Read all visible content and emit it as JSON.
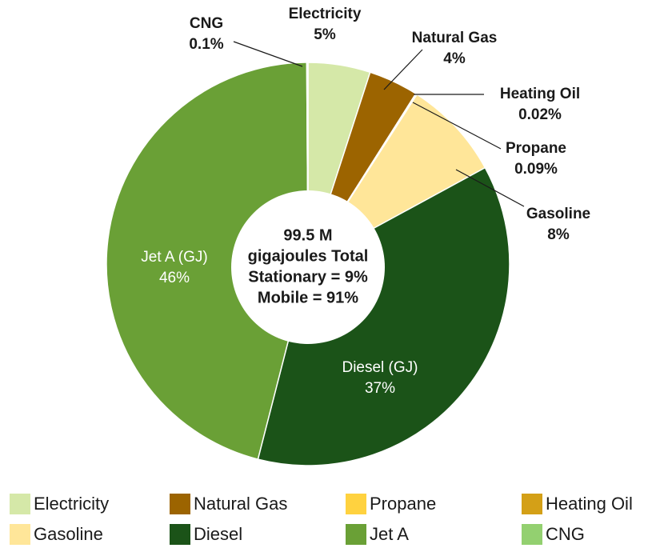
{
  "chart_data": {
    "type": "donut",
    "slices": [
      {
        "label": "Electricity",
        "value": 5,
        "value_label": "5%",
        "color": "#d5e8a8"
      },
      {
        "label": "Natural Gas",
        "value": 4,
        "value_label": "4%",
        "color": "#9c6400"
      },
      {
        "label": "Heating Oil",
        "value": 0.02,
        "value_label": "0.02%",
        "color": "#d4a017"
      },
      {
        "label": "Propane",
        "value": 0.09,
        "value_label": "0.09%",
        "color": "#ffd23f"
      },
      {
        "label": "Gasoline",
        "value": 8,
        "value_label": "8%",
        "color": "#ffe699"
      },
      {
        "label": "Diesel (GJ)",
        "value": 37,
        "value_label": "37%",
        "color": "#1b5318"
      },
      {
        "label": "Jet A (GJ)",
        "value": 46,
        "value_label": "46%",
        "color": "#6aa036"
      },
      {
        "label": "CNG",
        "value": 0.1,
        "value_label": "0.1%",
        "color": "#93d070"
      }
    ],
    "center_text": [
      "99.5 M",
      "gigajoules Total",
      "Stationary = 9%",
      "Mobile = 91%"
    ],
    "legend": [
      {
        "name": "Electricity",
        "color": "#d5e8a8"
      },
      {
        "name": "Natural Gas",
        "color": "#9c6400"
      },
      {
        "name": "Propane",
        "color": "#ffd23f"
      },
      {
        "name": "Heating Oil",
        "color": "#d4a017"
      },
      {
        "name": "Gasoline",
        "color": "#ffe699"
      },
      {
        "name": "Diesel",
        "color": "#1b5318"
      },
      {
        "name": "Jet A",
        "color": "#6aa036"
      },
      {
        "name": "CNG",
        "color": "#93d070"
      }
    ]
  }
}
